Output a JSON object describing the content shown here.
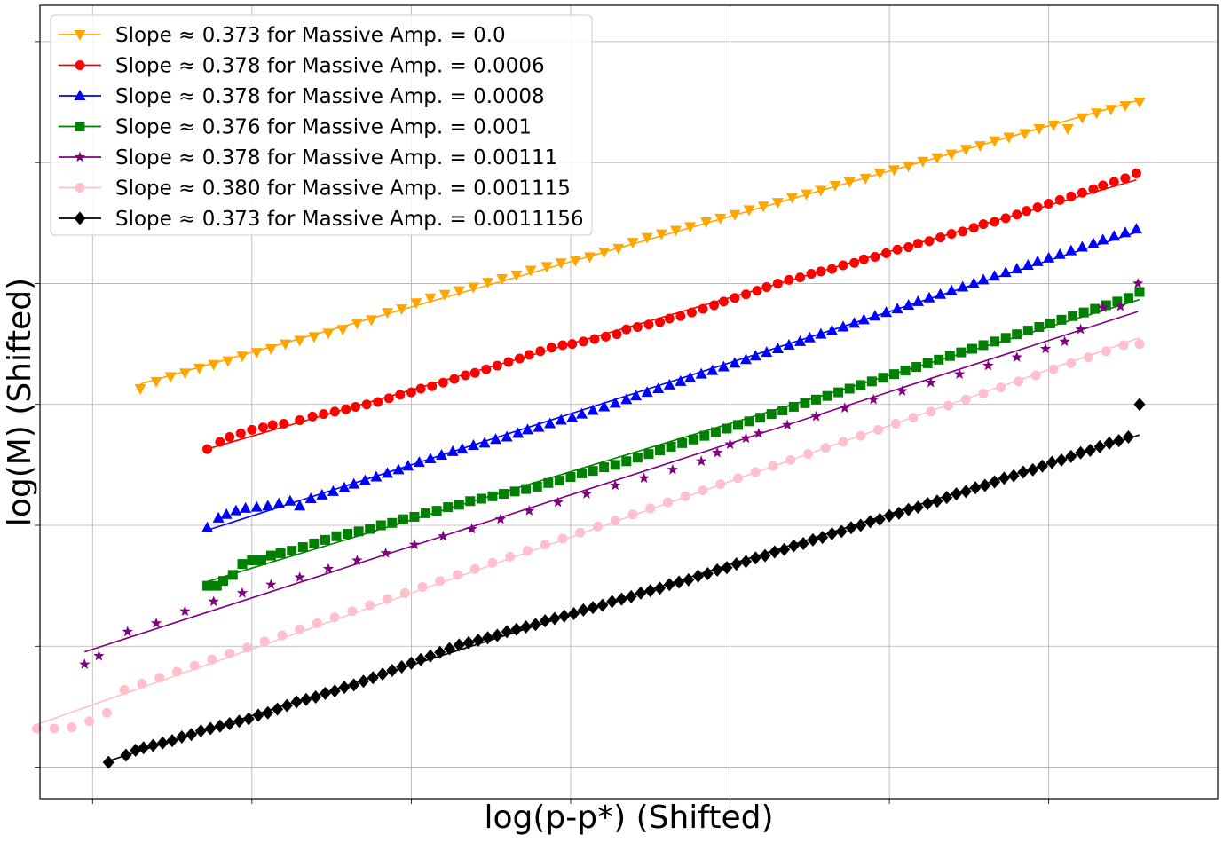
{
  "chart_data": {
    "type": "scatter",
    "title": "",
    "xlabel": "log(p-p*) (Shifted)",
    "ylabel": "log(M) (Shifted)",
    "xlim": [
      -0.33,
      7.06
    ],
    "ylim": [
      -0.26,
      6.3
    ],
    "grid": true,
    "tick_labels_shown": false,
    "legend": "upper-left",
    "x_gridlines": [
      0,
      1,
      2,
      3,
      4,
      5,
      6
    ],
    "y_gridlines": [
      0,
      1,
      2,
      3,
      4,
      5,
      6
    ],
    "series": [
      {
        "name": "Slope ≈ 0.373 for Massive Amp. = 0.0",
        "color": "#ffa500",
        "marker": "triangle-down",
        "offset": 3.0,
        "x": [
          0.3,
          0.4,
          0.49,
          0.58,
          0.67,
          0.76,
          0.85,
          0.94,
          1.03,
          1.12,
          1.21,
          1.3,
          1.39,
          1.48,
          1.57,
          1.66,
          1.75,
          1.85,
          1.94,
          2.03,
          2.12,
          2.21,
          2.3,
          2.39,
          2.48,
          2.57,
          2.66,
          2.75,
          2.85,
          2.94,
          3.03,
          3.12,
          3.21,
          3.3,
          3.39,
          3.48,
          3.57,
          3.66,
          3.75,
          3.85,
          3.94,
          4.03,
          4.12,
          4.21,
          4.3,
          4.39,
          4.48,
          4.57,
          4.66,
          4.75,
          4.85,
          4.94,
          5.03,
          5.12,
          5.21,
          5.3,
          5.39,
          5.48,
          5.57,
          5.66,
          5.75,
          5.85,
          5.94,
          6.03,
          6.12,
          6.21,
          6.3,
          6.39,
          6.48,
          6.57
        ],
        "fit": [
          0.3,
          6.57
        ],
        "y": [
          3.13,
          3.19,
          3.23,
          3.26,
          3.3,
          3.33,
          3.36,
          3.4,
          3.43,
          3.46,
          3.5,
          3.53,
          3.56,
          3.59,
          3.62,
          3.67,
          3.7,
          3.76,
          3.79,
          3.84,
          3.88,
          3.91,
          3.94,
          3.97,
          4.01,
          4.04,
          4.07,
          4.11,
          4.14,
          4.17,
          4.19,
          4.22,
          4.26,
          4.29,
          4.34,
          4.38,
          4.41,
          4.44,
          4.47,
          4.51,
          4.54,
          4.57,
          4.61,
          4.64,
          4.67,
          4.71,
          4.74,
          4.77,
          4.81,
          4.84,
          4.87,
          4.91,
          4.94,
          4.97,
          5.01,
          5.04,
          5.07,
          5.11,
          5.14,
          5.18,
          5.21,
          5.24,
          5.28,
          5.31,
          5.28,
          5.37,
          5.41,
          5.44,
          5.47,
          5.5
        ]
      },
      {
        "name": "Slope ≈ 0.378 for Massive Amp. = 0.0006",
        "color": "#ff0000",
        "marker": "circle",
        "offset": 2.5,
        "x": [
          0.72,
          0.8,
          0.86,
          0.93,
          1.0,
          1.07,
          1.13,
          1.2,
          1.3,
          1.38,
          1.45,
          1.52,
          1.59,
          1.65,
          1.72,
          1.79,
          1.86,
          1.93,
          2.0,
          2.06,
          2.13,
          2.2,
          2.27,
          2.34,
          2.4,
          2.47,
          2.54,
          2.61,
          2.68,
          2.74,
          2.81,
          2.88,
          2.95,
          3.01,
          3.08,
          3.15,
          3.22,
          3.29,
          3.35,
          3.42,
          3.49,
          3.56,
          3.62,
          3.69,
          3.76,
          3.83,
          3.9,
          3.96,
          4.03,
          4.1,
          4.17,
          4.23,
          4.3,
          4.37,
          4.44,
          4.51,
          4.57,
          4.64,
          4.71,
          4.78,
          4.84,
          4.91,
          4.98,
          5.05,
          5.12,
          5.18,
          5.25,
          5.32,
          5.39,
          5.46,
          5.53,
          5.59,
          5.66,
          5.73,
          5.8,
          5.86,
          5.93,
          6.0,
          6.07,
          6.14,
          6.21,
          6.28,
          6.34,
          6.41,
          6.48,
          6.55
        ],
        "y": [
          2.63,
          2.69,
          2.73,
          2.76,
          2.79,
          2.81,
          2.83,
          2.84,
          2.87,
          2.9,
          2.92,
          2.94,
          2.96,
          2.98,
          3.0,
          3.02,
          3.05,
          3.08,
          3.1,
          3.13,
          3.15,
          3.18,
          3.21,
          3.24,
          3.26,
          3.29,
          3.32,
          3.35,
          3.38,
          3.41,
          3.44,
          3.47,
          3.49,
          3.5,
          3.52,
          3.54,
          3.56,
          3.58,
          3.62,
          3.64,
          3.66,
          3.68,
          3.71,
          3.73,
          3.76,
          3.79,
          3.82,
          3.85,
          3.88,
          3.91,
          3.94,
          3.97,
          4.0,
          4.03,
          4.05,
          4.08,
          4.1,
          4.12,
          4.15,
          4.17,
          4.2,
          4.22,
          4.25,
          4.28,
          4.3,
          4.33,
          4.35,
          4.38,
          4.41,
          4.43,
          4.46,
          4.49,
          4.51,
          4.54,
          4.57,
          4.6,
          4.63,
          4.66,
          4.69,
          4.72,
          4.75,
          4.78,
          4.81,
          4.84,
          4.87,
          4.91
        ],
        "fit": [
          0.72,
          6.55
        ]
      },
      {
        "name": "Slope ≈ 0.378 for Massive Amp. = 0.0008",
        "color": "#0000ff",
        "marker": "triangle-up",
        "offset": 2.0,
        "x": [
          0.72,
          0.79,
          0.84,
          0.9,
          0.96,
          1.03,
          1.1,
          1.17,
          1.24,
          1.3,
          1.37,
          1.44,
          1.51,
          1.58,
          1.64,
          1.71,
          1.78,
          1.85,
          1.92,
          1.98,
          2.05,
          2.12,
          2.19,
          2.26,
          2.32,
          2.39,
          2.46,
          2.53,
          2.6,
          2.67,
          2.73,
          2.8,
          2.87,
          2.94,
          3.01,
          3.07,
          3.14,
          3.21,
          3.28,
          3.35,
          3.41,
          3.48,
          3.55,
          3.62,
          3.69,
          3.75,
          3.82,
          3.89,
          3.96,
          4.03,
          4.1,
          4.16,
          4.23,
          4.3,
          4.37,
          4.44,
          4.5,
          4.57,
          4.64,
          4.71,
          4.78,
          4.84,
          4.91,
          4.98,
          5.05,
          5.12,
          5.18,
          5.25,
          5.32,
          5.39,
          5.46,
          5.53,
          5.59,
          5.66,
          5.73,
          5.8,
          5.87,
          5.93,
          6.0,
          6.07,
          6.14,
          6.21,
          6.28,
          6.34,
          6.41,
          6.48,
          6.55
        ],
        "y": [
          1.98,
          2.06,
          2.09,
          2.12,
          2.14,
          2.15,
          2.16,
          2.18,
          2.2,
          2.16,
          2.22,
          2.25,
          2.28,
          2.31,
          2.34,
          2.37,
          2.4,
          2.43,
          2.46,
          2.49,
          2.52,
          2.55,
          2.58,
          2.61,
          2.63,
          2.66,
          2.68,
          2.71,
          2.73,
          2.76,
          2.79,
          2.81,
          2.84,
          2.87,
          2.89,
          2.92,
          2.95,
          2.98,
          3.01,
          3.04,
          3.07,
          3.1,
          3.13,
          3.16,
          3.19,
          3.22,
          3.25,
          3.28,
          3.31,
          3.34,
          3.37,
          3.4,
          3.43,
          3.46,
          3.49,
          3.52,
          3.55,
          3.58,
          3.61,
          3.64,
          3.67,
          3.7,
          3.73,
          3.76,
          3.79,
          3.82,
          3.85,
          3.88,
          3.91,
          3.94,
          3.97,
          4.0,
          4.03,
          4.06,
          4.09,
          4.12,
          4.15,
          4.18,
          4.21,
          4.24,
          4.27,
          4.3,
          4.33,
          4.36,
          4.39,
          4.42,
          4.45
        ],
        "fit": [
          0.72,
          6.55
        ]
      },
      {
        "name": "Slope ≈ 0.376 for Massive Amp. = 0.001",
        "color": "#008000",
        "marker": "square",
        "offset": 1.5,
        "x": [
          0.72,
          0.78,
          0.82,
          0.88,
          0.94,
          1.0,
          1.06,
          1.12,
          1.18,
          1.25,
          1.32,
          1.39,
          1.46,
          1.53,
          1.6,
          1.67,
          1.74,
          1.81,
          1.88,
          1.95,
          2.02,
          2.09,
          2.16,
          2.23,
          2.3,
          2.37,
          2.44,
          2.51,
          2.58,
          2.65,
          2.72,
          2.79,
          2.86,
          2.93,
          3.0,
          3.07,
          3.14,
          3.21,
          3.28,
          3.35,
          3.42,
          3.49,
          3.56,
          3.63,
          3.7,
          3.77,
          3.84,
          3.91,
          3.98,
          4.05,
          4.12,
          4.19,
          4.26,
          4.33,
          4.4,
          4.47,
          4.54,
          4.61,
          4.68,
          4.75,
          4.82,
          4.89,
          4.96,
          5.03,
          5.1,
          5.17,
          5.24,
          5.31,
          5.38,
          5.45,
          5.52,
          5.59,
          5.66,
          5.73,
          5.8,
          5.87,
          5.94,
          6.01,
          6.08,
          6.15,
          6.22,
          6.29,
          6.36,
          6.43,
          6.5,
          6.57
        ],
        "y": [
          1.5,
          1.5,
          1.54,
          1.59,
          1.68,
          1.71,
          1.71,
          1.75,
          1.77,
          1.79,
          1.82,
          1.85,
          1.88,
          1.91,
          1.93,
          1.95,
          1.97,
          2.0,
          2.02,
          2.05,
          2.07,
          2.1,
          2.12,
          2.15,
          2.17,
          2.2,
          2.22,
          2.24,
          2.26,
          2.28,
          2.3,
          2.32,
          2.35,
          2.37,
          2.4,
          2.43,
          2.45,
          2.48,
          2.5,
          2.53,
          2.56,
          2.59,
          2.62,
          2.65,
          2.68,
          2.71,
          2.74,
          2.77,
          2.8,
          2.83,
          2.86,
          2.89,
          2.92,
          2.95,
          2.98,
          3.01,
          3.04,
          3.07,
          3.1,
          3.13,
          3.16,
          3.19,
          3.22,
          3.25,
          3.28,
          3.31,
          3.34,
          3.37,
          3.4,
          3.43,
          3.46,
          3.49,
          3.52,
          3.55,
          3.58,
          3.61,
          3.64,
          3.67,
          3.7,
          3.73,
          3.76,
          3.79,
          3.82,
          3.85,
          3.88,
          3.93
        ],
        "fit": [
          0.72,
          6.57
        ]
      },
      {
        "name": "Slope ≈ 0.378 for Massive Amp. = 0.00111",
        "color": "#800080",
        "marker": "star",
        "offset": 1.0,
        "x": [
          -0.05,
          0.04,
          0.22,
          0.4,
          0.58,
          0.76,
          0.94,
          1.12,
          1.3,
          1.48,
          1.66,
          1.84,
          2.02,
          2.2,
          2.38,
          2.56,
          2.74,
          2.92,
          3.1,
          3.28,
          3.46,
          3.64,
          3.82,
          3.92,
          4.0,
          4.1,
          4.18,
          4.36,
          4.54,
          4.72,
          4.9,
          5.08,
          5.26,
          5.44,
          5.62,
          5.8,
          5.98,
          6.1,
          6.2,
          6.34,
          6.45,
          6.56
        ],
        "y": [
          0.85,
          0.92,
          1.12,
          1.19,
          1.29,
          1.37,
          1.44,
          1.51,
          1.57,
          1.64,
          1.71,
          1.77,
          1.84,
          1.91,
          1.97,
          2.05,
          2.12,
          2.19,
          2.26,
          2.33,
          2.39,
          2.46,
          2.53,
          2.6,
          2.67,
          2.72,
          2.76,
          2.83,
          2.9,
          2.97,
          3.04,
          3.11,
          3.18,
          3.25,
          3.32,
          3.39,
          3.46,
          3.52,
          3.62,
          3.8,
          3.81,
          4.0
        ],
        "fit": [
          -0.05,
          6.56
        ]
      },
      {
        "name": "Slope ≈ 0.380 for Massive Amp. = 0.001115",
        "color": "#ffc0cb",
        "marker": "circle",
        "offset": 0.5,
        "x": [
          -0.35,
          -0.24,
          -0.13,
          -0.02,
          0.09,
          0.2,
          0.31,
          0.42,
          0.53,
          0.64,
          0.75,
          0.86,
          0.97,
          1.08,
          1.19,
          1.3,
          1.41,
          1.52,
          1.63,
          1.74,
          1.85,
          1.96,
          2.07,
          2.18,
          2.29,
          2.4,
          2.51,
          2.62,
          2.73,
          2.84,
          2.95,
          3.06,
          3.17,
          3.28,
          3.39,
          3.5,
          3.61,
          3.72,
          3.83,
          3.94,
          4.05,
          4.16,
          4.27,
          4.38,
          4.49,
          4.6,
          4.71,
          4.82,
          4.93,
          5.04,
          5.15,
          5.26,
          5.37,
          5.48,
          5.59,
          5.7,
          5.81,
          5.92,
          6.03,
          6.14,
          6.25,
          6.36,
          6.47,
          6.57
        ],
        "y": [
          0.32,
          0.32,
          0.33,
          0.38,
          0.45,
          0.64,
          0.69,
          0.74,
          0.79,
          0.84,
          0.89,
          0.94,
          0.99,
          1.04,
          1.09,
          1.14,
          1.19,
          1.24,
          1.29,
          1.34,
          1.39,
          1.44,
          1.49,
          1.54,
          1.59,
          1.64,
          1.69,
          1.74,
          1.79,
          1.84,
          1.89,
          1.94,
          1.99,
          2.04,
          2.09,
          2.14,
          2.19,
          2.24,
          2.29,
          2.34,
          2.39,
          2.44,
          2.49,
          2.54,
          2.59,
          2.64,
          2.69,
          2.74,
          2.79,
          2.84,
          2.89,
          2.94,
          2.99,
          3.04,
          3.09,
          3.14,
          3.19,
          3.24,
          3.29,
          3.34,
          3.39,
          3.44,
          3.49,
          3.5
        ],
        "fit": [
          -0.35,
          6.57
        ]
      },
      {
        "name": "Slope ≈ 0.373 for Massive Amp. = 0.0011156",
        "color": "#000000",
        "marker": "diamond",
        "offset": 0.0,
        "x": [
          0.1,
          0.21,
          0.27,
          0.32,
          0.38,
          0.44,
          0.5,
          0.56,
          0.62,
          0.68,
          0.74,
          0.8,
          0.86,
          0.92,
          0.98,
          1.04,
          1.1,
          1.16,
          1.22,
          1.28,
          1.34,
          1.4,
          1.46,
          1.52,
          1.58,
          1.64,
          1.7,
          1.76,
          1.82,
          1.88,
          1.94,
          2.0,
          2.06,
          2.12,
          2.18,
          2.24,
          2.3,
          2.36,
          2.42,
          2.48,
          2.54,
          2.6,
          2.66,
          2.72,
          2.78,
          2.84,
          2.9,
          2.96,
          3.02,
          3.08,
          3.14,
          3.2,
          3.26,
          3.32,
          3.38,
          3.44,
          3.5,
          3.56,
          3.62,
          3.68,
          3.74,
          3.8,
          3.86,
          3.92,
          3.98,
          4.04,
          4.1,
          4.16,
          4.22,
          4.28,
          4.34,
          4.4,
          4.46,
          4.52,
          4.58,
          4.64,
          4.7,
          4.76,
          4.82,
          4.88,
          4.94,
          5.0,
          5.06,
          5.12,
          5.18,
          5.24,
          5.3,
          5.36,
          5.42,
          5.48,
          5.54,
          5.6,
          5.66,
          5.72,
          5.78,
          5.84,
          5.9,
          5.96,
          6.02,
          6.08,
          6.14,
          6.2,
          6.26,
          6.32,
          6.38,
          6.44,
          6.5,
          6.57
        ],
        "y": [
          0.04,
          0.1,
          0.14,
          0.16,
          0.18,
          0.2,
          0.22,
          0.25,
          0.27,
          0.3,
          0.32,
          0.34,
          0.36,
          0.38,
          0.4,
          0.43,
          0.45,
          0.48,
          0.51,
          0.54,
          0.56,
          0.58,
          0.61,
          0.63,
          0.66,
          0.68,
          0.71,
          0.74,
          0.77,
          0.8,
          0.83,
          0.86,
          0.89,
          0.92,
          0.95,
          0.98,
          1.01,
          1.03,
          1.05,
          1.07,
          1.09,
          1.12,
          1.14,
          1.16,
          1.18,
          1.21,
          1.23,
          1.25,
          1.27,
          1.3,
          1.32,
          1.34,
          1.37,
          1.39,
          1.41,
          1.44,
          1.46,
          1.48,
          1.51,
          1.53,
          1.55,
          1.58,
          1.6,
          1.63,
          1.65,
          1.68,
          1.7,
          1.73,
          1.75,
          1.78,
          1.8,
          1.83,
          1.85,
          1.88,
          1.9,
          1.93,
          1.95,
          1.98,
          2.0,
          2.03,
          2.05,
          2.08,
          2.1,
          2.13,
          2.15,
          2.18,
          2.2,
          2.23,
          2.26,
          2.28,
          2.31,
          2.33,
          2.36,
          2.39,
          2.41,
          2.44,
          2.46,
          2.49,
          2.52,
          2.54,
          2.57,
          2.6,
          2.62,
          2.65,
          2.68,
          2.7,
          2.73,
          3.0
        ],
        "fit": [
          0.1,
          6.57
        ]
      }
    ]
  }
}
